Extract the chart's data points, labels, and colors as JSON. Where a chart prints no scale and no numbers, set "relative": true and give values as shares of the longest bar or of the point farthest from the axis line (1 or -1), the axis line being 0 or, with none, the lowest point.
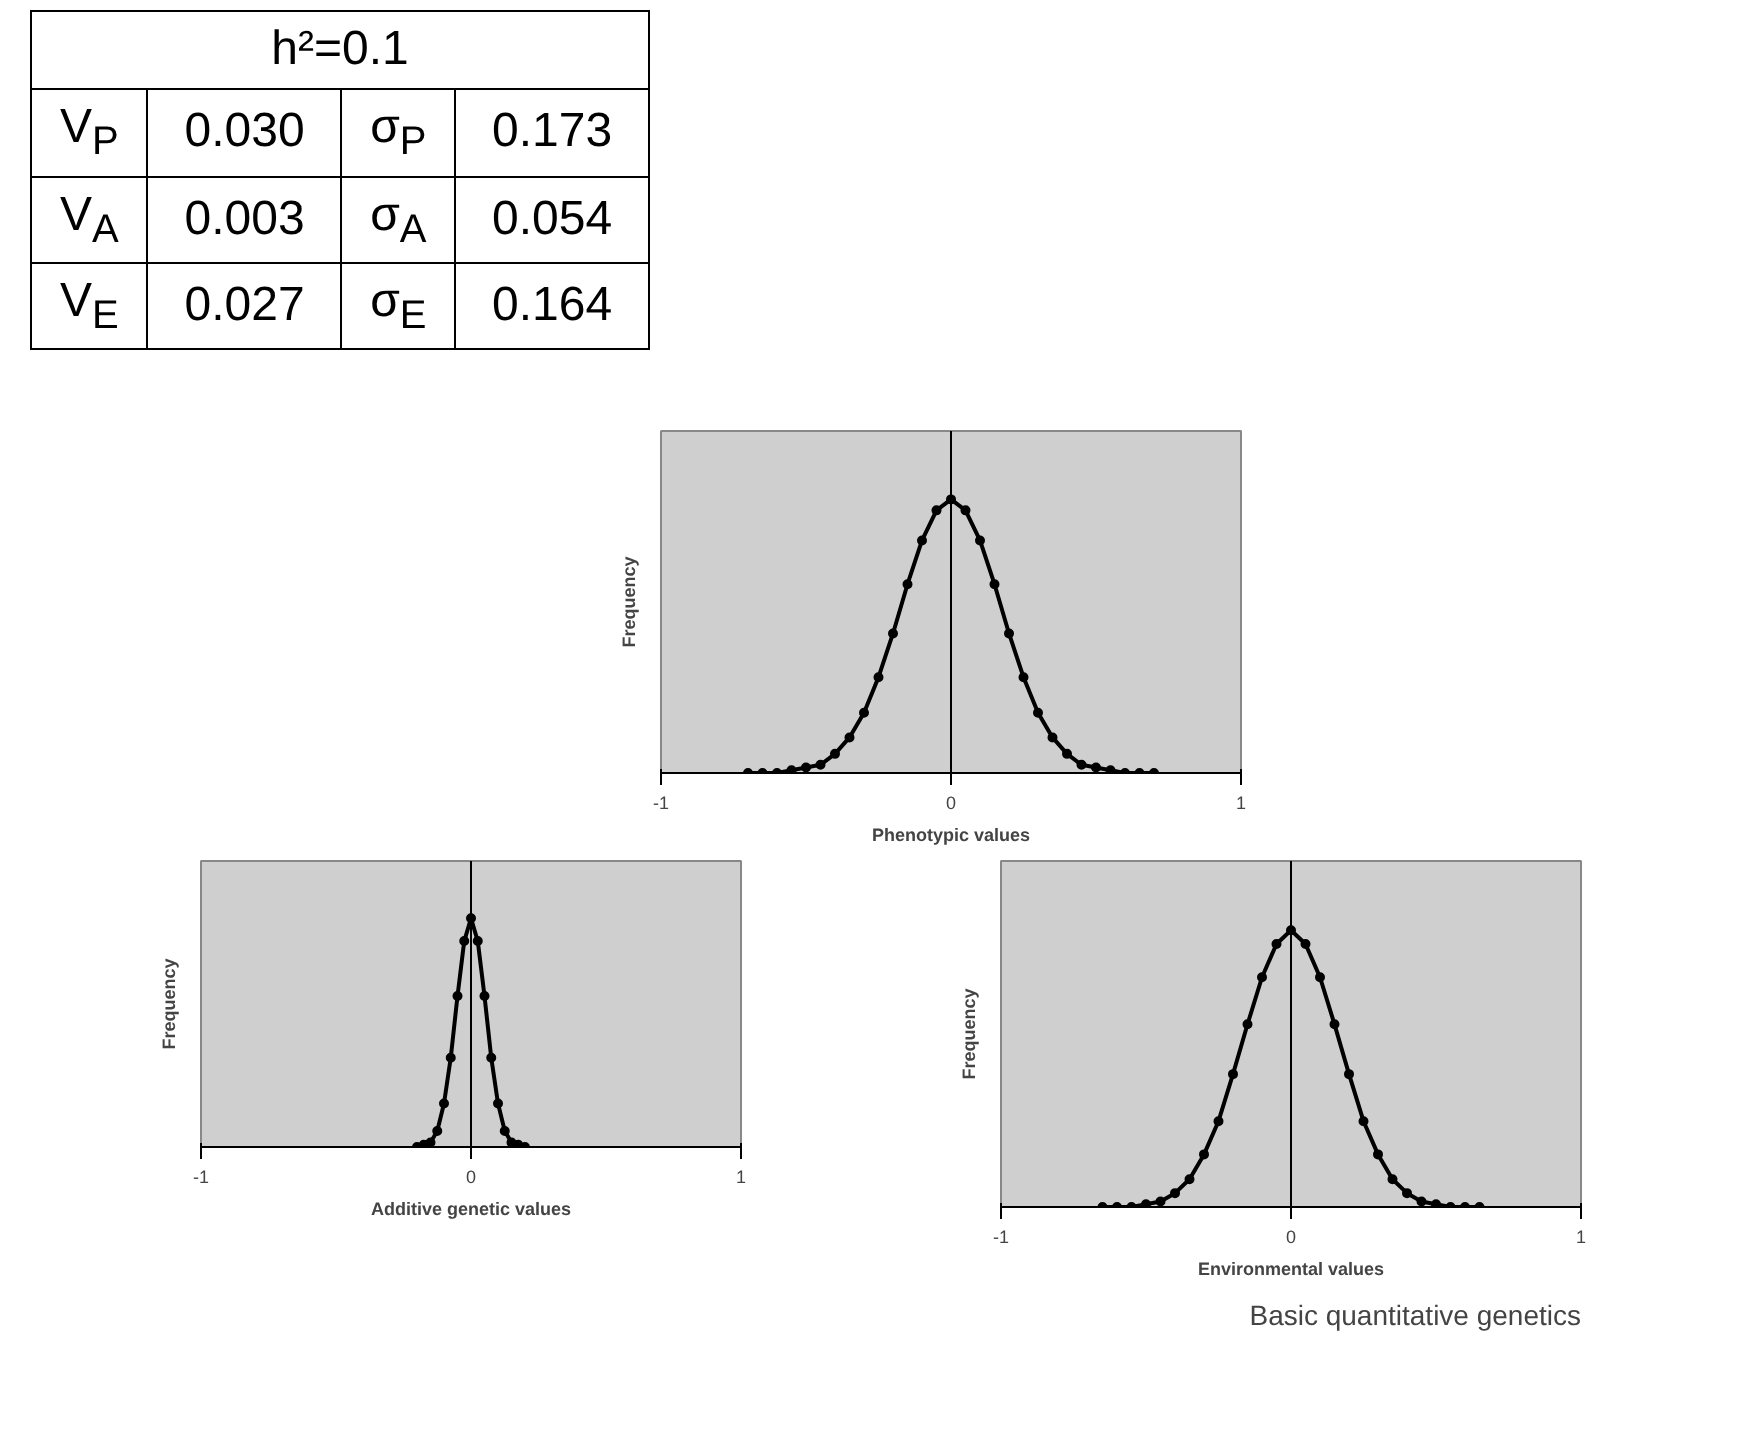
{
  "chart_data": [
    {
      "type": "other",
      "title": "h²=0.1",
      "annotations": [
        "V$_{P}$",
        "0.030",
        "σ$_{P}$",
        "0.173",
        "V$_{A}$",
        "0.003",
        "σ$_{A}$",
        "0.054",
        "V$_{E}$",
        "0.027",
        "σ$_{E}$",
        "0.164"
      ]
    },
    {
      "type": "line",
      "relative": true,
      "xlabel": "Phenotypic values",
      "ylabel": "Frequency",
      "xlim": [
        -1,
        1
      ],
      "xticks": [
        -1,
        0,
        1
      ],
      "marker": "circle",
      "grid": false,
      "ref_lines": [
        {
          "axis": "x",
          "value": 0,
          "color": "#000000"
        }
      ],
      "series": [
        {
          "color": "#000000",
          "x": [
            -0.7,
            -0.65,
            -0.6,
            -0.55,
            -0.5,
            -0.45,
            -0.4,
            -0.35,
            -0.3,
            -0.25,
            -0.2,
            -0.15,
            -0.1,
            -0.05,
            0,
            0.05,
            0.1,
            0.15,
            0.2,
            0.25,
            0.3,
            0.35,
            0.4,
            0.45,
            0.5,
            0.55,
            0.6,
            0.65,
            0.7
          ],
          "values": [
            0,
            0,
            0,
            0.01,
            0.02,
            0.03,
            0.07,
            0.13,
            0.22,
            0.35,
            0.51,
            0.69,
            0.85,
            0.96,
            1,
            0.96,
            0.85,
            0.69,
            0.51,
            0.35,
            0.22,
            0.13,
            0.07,
            0.03,
            0.02,
            0.01,
            0,
            0,
            0
          ]
        }
      ]
    },
    {
      "type": "line",
      "relative": true,
      "xlabel": "Additive genetic values",
      "ylabel": "Frequency",
      "xlim": [
        -1,
        1
      ],
      "xticks": [
        -1,
        0,
        1
      ],
      "marker": "circle",
      "grid": false,
      "ref_lines": [
        {
          "axis": "x",
          "value": 0,
          "color": "#000000"
        }
      ],
      "series": [
        {
          "color": "#000000",
          "x": [
            -0.2,
            -0.175,
            -0.15,
            -0.125,
            -0.1,
            -0.075,
            -0.05,
            -0.025,
            0,
            0.025,
            0.05,
            0.075,
            0.1,
            0.125,
            0.15,
            0.175,
            0.2
          ],
          "values": [
            0,
            0.01,
            0.02,
            0.07,
            0.19,
            0.39,
            0.66,
            0.9,
            1,
            0.9,
            0.66,
            0.39,
            0.19,
            0.07,
            0.02,
            0.01,
            0
          ]
        }
      ]
    },
    {
      "type": "line",
      "relative": true,
      "xlabel": "Environmental values",
      "ylabel": "Frequency",
      "xlim": [
        -1,
        1
      ],
      "xticks": [
        -1,
        0,
        1
      ],
      "marker": "circle",
      "grid": false,
      "ref_lines": [
        {
          "axis": "x",
          "value": 0,
          "color": "#000000"
        }
      ],
      "annotations": [
        "Basic quantitative genetics"
      ],
      "series": [
        {
          "color": "#000000",
          "x": [
            -0.65,
            -0.6,
            -0.55,
            -0.5,
            -0.45,
            -0.4,
            -0.35,
            -0.3,
            -0.25,
            -0.2,
            -0.15,
            -0.1,
            -0.05,
            0,
            0.05,
            0.1,
            0.15,
            0.2,
            0.25,
            0.3,
            0.35,
            0.4,
            0.45,
            0.5,
            0.55,
            0.6,
            0.65
          ],
          "values": [
            0,
            0,
            0,
            0.01,
            0.02,
            0.05,
            0.1,
            0.19,
            0.31,
            0.48,
            0.66,
            0.83,
            0.95,
            1,
            0.95,
            0.83,
            0.66,
            0.48,
            0.31,
            0.19,
            0.1,
            0.05,
            0.02,
            0.01,
            0,
            0,
            0
          ]
        }
      ]
    }
  ]
}
